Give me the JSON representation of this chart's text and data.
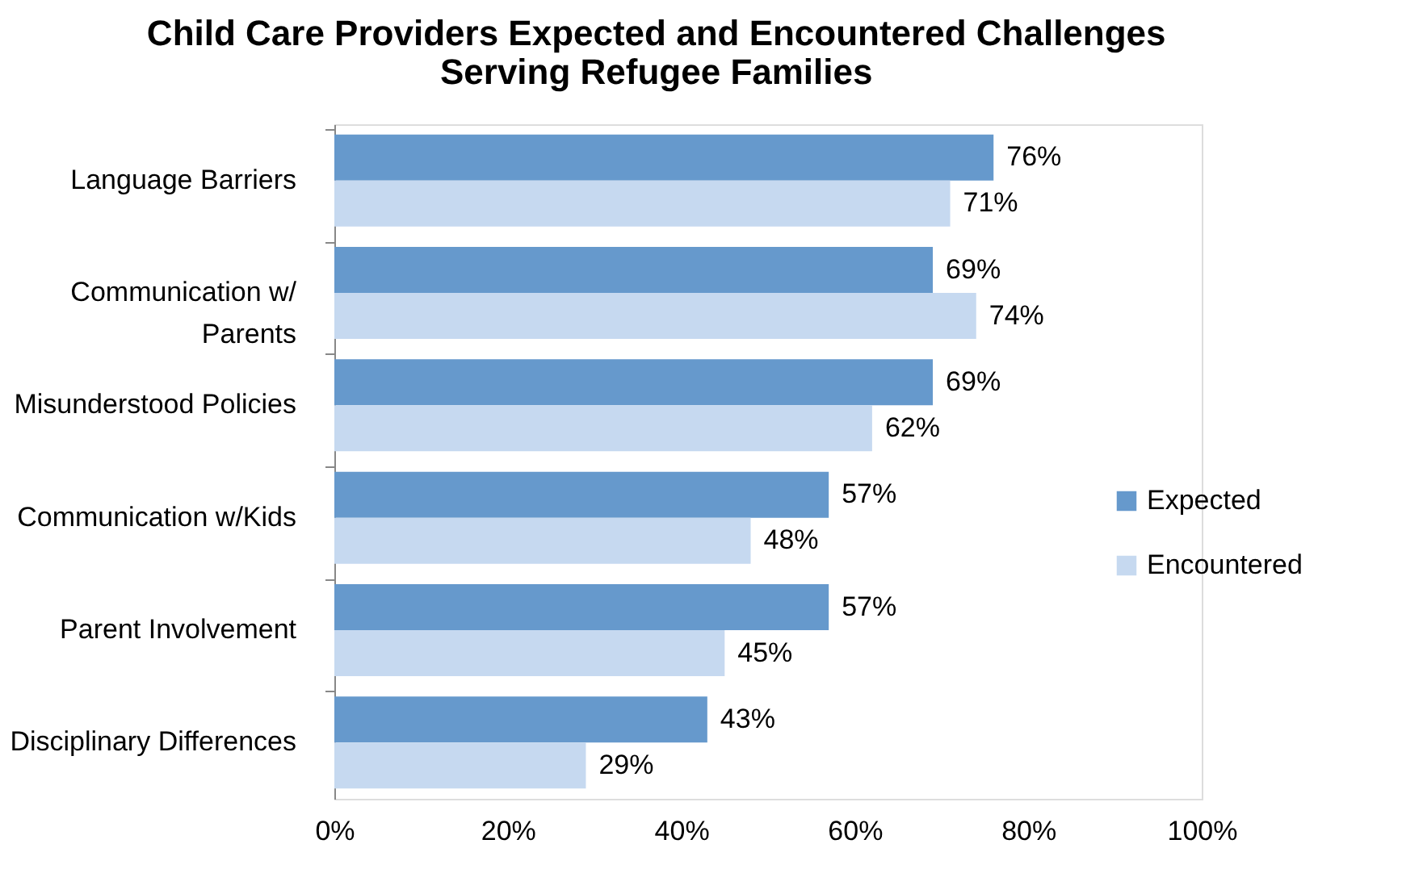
{
  "chart_data": {
    "type": "bar",
    "orientation": "horizontal",
    "title": [
      "Child Care Providers Expected and Encountered Challenges",
      "Serving Refugee Families"
    ],
    "categories": [
      "Language Barriers",
      "Communication w/\nParents",
      "Misunderstood Policies",
      "Communication w/Kids",
      "Parent Involvement",
      "Disciplinary Differences"
    ],
    "series": [
      {
        "name": "Expected",
        "color": "#6699cc",
        "values": [
          76,
          69,
          69,
          57,
          57,
          43
        ],
        "value_labels": [
          "76%",
          "69%",
          "69%",
          "57%",
          "57%",
          "43%"
        ]
      },
      {
        "name": "Encountered",
        "color": "#c6d9f0",
        "values": [
          71,
          74,
          62,
          48,
          45,
          29
        ],
        "value_labels": [
          "71%",
          "74%",
          "62%",
          "48%",
          "45%",
          "29%"
        ]
      }
    ],
    "xlim": [
      0,
      100
    ],
    "xticks": [
      {
        "value": 0,
        "label": "0%"
      },
      {
        "value": 20,
        "label": "20%"
      },
      {
        "value": 40,
        "label": "40%"
      },
      {
        "value": 60,
        "label": "60%"
      },
      {
        "value": 80,
        "label": "80%"
      },
      {
        "value": 100,
        "label": "100%"
      }
    ],
    "grid": false,
    "legend": "right"
  }
}
